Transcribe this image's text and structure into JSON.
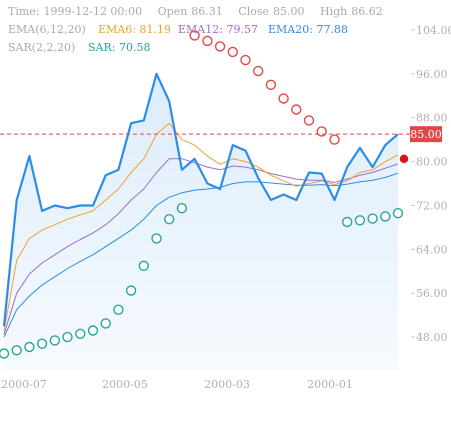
{
  "header": {
    "time_label": "Time:",
    "time": "1999-12-12 00:00",
    "open_label": "Open",
    "open": "86.31",
    "close_label": "Close",
    "close": "85.00",
    "high_label": "High",
    "high": "86.62",
    "ema_group": "EMA(6,12,20)",
    "ema6_label": "EMA6:",
    "ema6": "81.19",
    "ema12_label": "EMA12:",
    "ema12": "79.57",
    "ema20_label": "EMA20:",
    "ema20": "77.88",
    "sar_group": "SAR(2,2,20)",
    "sar_label": "SAR:",
    "sar": "70.58"
  },
  "colors": {
    "price": "#2a8ee6",
    "area": "#dcecfb",
    "ema6": "#f0a030",
    "ema12": "#a06bd0",
    "ema20": "#2a8ee6",
    "sar_up": "#26a69a",
    "sar_down": "#e04848",
    "last_price": "#e04848"
  },
  "chart_data": {
    "type": "line",
    "y_ticks": [
      "104.00",
      "96.00",
      "88.00",
      "80.00",
      "72.00",
      "64.00",
      "56.00",
      "48.00"
    ],
    "x_ticks": [
      "2000-07",
      "2000-05",
      "2000-03",
      "2000-01"
    ],
    "ylim": [
      42,
      108
    ],
    "last_price": "85.00",
    "series": [
      {
        "key": "price",
        "values": [
          50,
          73,
          81,
          71,
          72,
          71.5,
          72,
          72,
          77.5,
          78.5,
          87,
          87.5,
          96,
          91,
          78.5,
          80.5,
          76,
          75,
          83,
          82,
          77,
          73,
          74,
          73,
          78,
          77.8,
          73,
          79,
          82.5,
          79,
          83,
          85
        ]
      },
      {
        "key": "ema6",
        "values": [
          49,
          62,
          66,
          67.5,
          68.5,
          69.5,
          70.3,
          71,
          73,
          75,
          78,
          80.5,
          85,
          87,
          84,
          83,
          81,
          79.5,
          80.5,
          80,
          79,
          77.5,
          76.5,
          75.5,
          76,
          76.5,
          75.8,
          76.5,
          78,
          78.5,
          80,
          81.19
        ]
      },
      {
        "key": "ema12",
        "values": [
          48.5,
          56,
          59.5,
          61.5,
          63,
          64.5,
          65.8,
          67,
          68.5,
          70.5,
          73,
          75,
          78,
          80.5,
          80.5,
          79.8,
          79,
          78.5,
          79.2,
          79,
          78.5,
          77.8,
          77.3,
          76.8,
          76.6,
          76.6,
          76.2,
          76.8,
          77.5,
          78,
          78.8,
          79.57
        ]
      },
      {
        "key": "ema20",
        "values": [
          48,
          53,
          55.5,
          57.5,
          59,
          60.5,
          61.8,
          63,
          64.5,
          66,
          67.5,
          69.5,
          72,
          73.5,
          74.3,
          74.8,
          75,
          75.3,
          76,
          76.3,
          76.3,
          76.1,
          75.9,
          75.7,
          75.7,
          75.8,
          75.6,
          75.9,
          76.3,
          76.6,
          77.1,
          77.88
        ]
      },
      {
        "key": "sar",
        "values": [
          45,
          45.6,
          46.2,
          46.8,
          47.4,
          48,
          48.6,
          49.2,
          50.5,
          53,
          56.5,
          61,
          66,
          69.5,
          71.5,
          103,
          102,
          101,
          100,
          98.5,
          96.5,
          94,
          91.5,
          89.5,
          87.5,
          85.5,
          84,
          69,
          69.3,
          69.6,
          70,
          70.58
        ],
        "direction": [
          "u",
          "u",
          "u",
          "u",
          "u",
          "u",
          "u",
          "u",
          "u",
          "u",
          "u",
          "u",
          "u",
          "u",
          "u",
          "d",
          "d",
          "d",
          "d",
          "d",
          "d",
          "d",
          "d",
          "d",
          "d",
          "d",
          "d",
          "u",
          "u",
          "u",
          "u",
          "u"
        ]
      }
    ]
  }
}
